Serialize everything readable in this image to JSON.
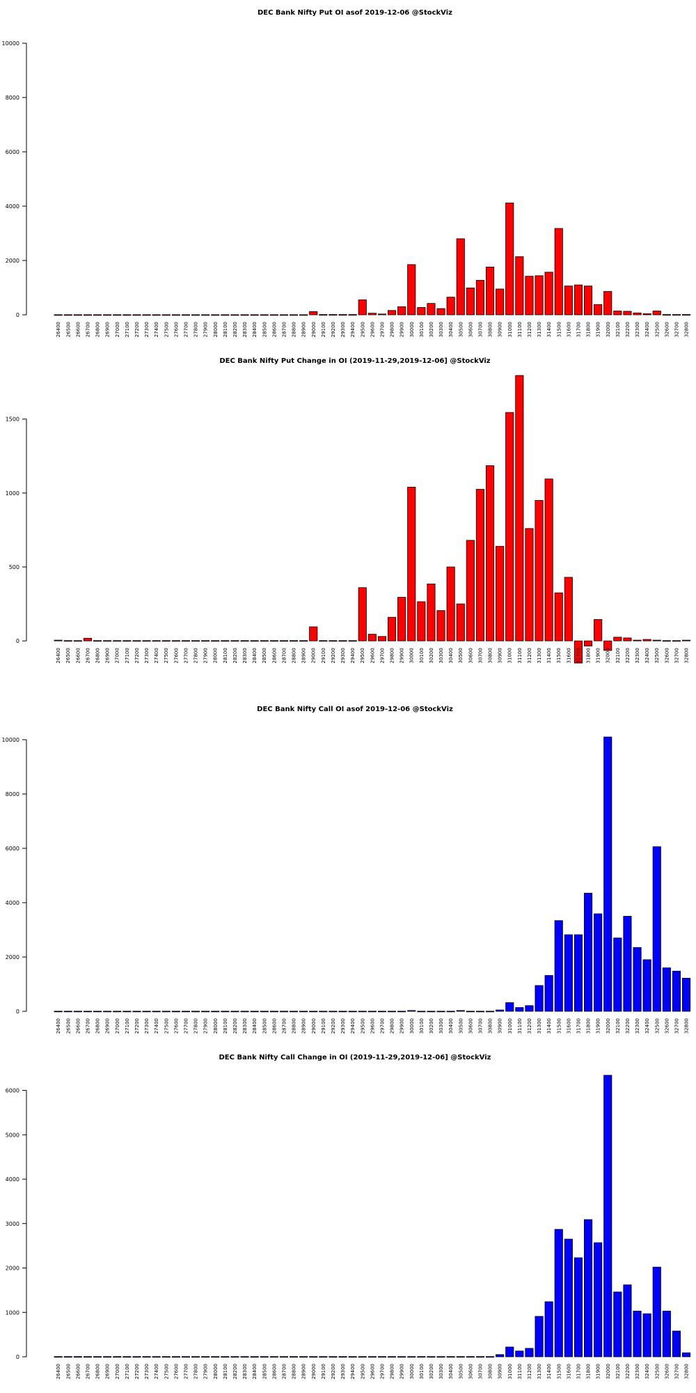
{
  "chart_data": [
    {
      "type": "bar",
      "title": "DEC Bank Nifty Put OI asof 2019-12-06 @StockViz",
      "color": "#ff0000",
      "ylim": [
        0,
        10000
      ],
      "yticks": [
        0,
        2000,
        4000,
        6000,
        8000,
        10000
      ],
      "categories": [
        "26400",
        "26500",
        "26600",
        "26700",
        "26800",
        "26900",
        "27000",
        "27100",
        "27200",
        "27300",
        "27400",
        "27500",
        "27600",
        "27700",
        "27800",
        "27900",
        "28000",
        "28100",
        "28200",
        "28300",
        "28400",
        "28500",
        "28600",
        "28700",
        "28800",
        "28900",
        "29000",
        "29100",
        "29200",
        "29300",
        "29400",
        "29500",
        "29600",
        "29700",
        "29800",
        "29900",
        "30000",
        "30100",
        "30200",
        "30300",
        "30400",
        "30500",
        "30600",
        "30700",
        "30800",
        "30900",
        "31000",
        "31100",
        "31200",
        "31300",
        "31400",
        "31500",
        "31600",
        "31700",
        "31800",
        "31900",
        "32000",
        "32100",
        "32200",
        "32300",
        "32400",
        "32500",
        "32600",
        "32700",
        "32800"
      ],
      "values": [
        5,
        5,
        5,
        5,
        5,
        5,
        5,
        5,
        5,
        5,
        5,
        5,
        5,
        5,
        5,
        5,
        5,
        5,
        5,
        5,
        5,
        5,
        5,
        5,
        5,
        5,
        120,
        10,
        10,
        10,
        10,
        550,
        60,
        30,
        160,
        300,
        1850,
        270,
        420,
        230,
        650,
        2800,
        990,
        1270,
        1760,
        950,
        4120,
        2140,
        1420,
        1440,
        1570,
        3180,
        1060,
        1100,
        1060,
        380,
        860,
        140,
        130,
        70,
        40,
        140,
        10,
        10,
        10
      ]
    },
    {
      "type": "bar",
      "title": "DEC Bank Nifty Put Change in OI (2019-11-29,2019-12-06] @StockViz",
      "color": "#ff0000",
      "ylim": [
        -150,
        1800
      ],
      "yticks": [
        0,
        500,
        1000,
        1500
      ],
      "categories": [
        "26400",
        "26500",
        "26600",
        "26700",
        "26800",
        "26900",
        "27000",
        "27100",
        "27200",
        "27300",
        "27400",
        "27500",
        "27600",
        "27700",
        "27800",
        "27900",
        "28000",
        "28100",
        "28200",
        "28300",
        "28400",
        "28500",
        "28600",
        "28700",
        "28800",
        "28900",
        "29000",
        "29100",
        "29200",
        "29300",
        "29400",
        "29500",
        "29600",
        "29700",
        "29800",
        "29900",
        "30000",
        "30100",
        "30200",
        "30300",
        "30400",
        "30500",
        "30600",
        "30700",
        "30800",
        "30900",
        "31000",
        "31100",
        "31200",
        "31300",
        "31400",
        "31500",
        "31600",
        "31700",
        "31800",
        "31900",
        "32000",
        "32100",
        "32200",
        "32300",
        "32400",
        "32500",
        "32600",
        "32700",
        "32800"
      ],
      "values": [
        5,
        2,
        2,
        18,
        2,
        2,
        2,
        2,
        2,
        2,
        2,
        2,
        2,
        2,
        2,
        2,
        2,
        2,
        2,
        2,
        2,
        2,
        2,
        2,
        2,
        2,
        95,
        2,
        2,
        2,
        2,
        360,
        45,
        30,
        160,
        295,
        1040,
        265,
        385,
        205,
        500,
        250,
        680,
        1025,
        1185,
        640,
        1545,
        1795,
        760,
        950,
        1095,
        325,
        430,
        -150,
        -35,
        145,
        -65,
        25,
        20,
        5,
        10,
        5,
        2,
        2,
        5
      ]
    },
    {
      "type": "bar",
      "title": "DEC Bank Nifty Call OI asof 2019-12-06 @StockViz",
      "color": "#0000ff",
      "ylim": [
        0,
        10000
      ],
      "yticks": [
        0,
        2000,
        4000,
        6000,
        8000,
        10000
      ],
      "categories": [
        "26400",
        "26500",
        "26600",
        "26700",
        "26800",
        "26900",
        "27000",
        "27100",
        "27200",
        "27300",
        "27400",
        "27500",
        "27600",
        "27700",
        "27800",
        "27900",
        "28000",
        "28100",
        "28200",
        "28300",
        "28400",
        "28500",
        "28600",
        "28700",
        "28800",
        "28900",
        "29000",
        "29100",
        "29200",
        "29300",
        "29400",
        "29500",
        "29600",
        "29700",
        "29800",
        "29900",
        "30000",
        "30100",
        "30200",
        "30300",
        "30400",
        "30500",
        "30600",
        "30700",
        "30800",
        "30900",
        "31000",
        "31100",
        "31200",
        "31300",
        "31400",
        "31500",
        "31600",
        "31700",
        "31800",
        "31900",
        "32000",
        "32100",
        "32200",
        "32300",
        "32400",
        "32500",
        "32600",
        "32700",
        "32800"
      ],
      "values": [
        5,
        5,
        5,
        5,
        5,
        5,
        5,
        5,
        5,
        5,
        5,
        5,
        5,
        5,
        5,
        5,
        5,
        5,
        5,
        5,
        5,
        5,
        5,
        5,
        5,
        5,
        5,
        5,
        5,
        5,
        5,
        5,
        5,
        5,
        5,
        5,
        30,
        5,
        5,
        5,
        5,
        30,
        5,
        5,
        5,
        50,
        320,
        140,
        210,
        950,
        1320,
        3340,
        2820,
        2820,
        4350,
        3590,
        10100,
        2700,
        3500,
        2350,
        1900,
        6060,
        1600,
        1480,
        1220
      ]
    },
    {
      "type": "bar",
      "title": "DEC Bank Nifty Call Change in OI (2019-11-29,2019-12-06] @StockViz",
      "color": "#0000ff",
      "ylim": [
        0,
        6400
      ],
      "yticks": [
        0,
        1000,
        2000,
        3000,
        4000,
        5000,
        6000
      ],
      "categories": [
        "26400",
        "26500",
        "26600",
        "26700",
        "26800",
        "26900",
        "27000",
        "27100",
        "27200",
        "27300",
        "27400",
        "27500",
        "27600",
        "27700",
        "27800",
        "27900",
        "28000",
        "28100",
        "28200",
        "28300",
        "28400",
        "28500",
        "28600",
        "28700",
        "28800",
        "28900",
        "29000",
        "29100",
        "29200",
        "29300",
        "29400",
        "29500",
        "29600",
        "29700",
        "29800",
        "29900",
        "30000",
        "30100",
        "30200",
        "30300",
        "30400",
        "30500",
        "30600",
        "30700",
        "30800",
        "30900",
        "31000",
        "31100",
        "31200",
        "31300",
        "31400",
        "31500",
        "31600",
        "31700",
        "31800",
        "31900",
        "32000",
        "32100",
        "32200",
        "32300",
        "32400",
        "32500",
        "32600",
        "32700",
        "32800"
      ],
      "values": [
        5,
        5,
        5,
        5,
        5,
        5,
        5,
        5,
        5,
        5,
        5,
        5,
        5,
        5,
        5,
        5,
        5,
        5,
        5,
        5,
        5,
        5,
        5,
        5,
        5,
        5,
        5,
        5,
        5,
        5,
        5,
        5,
        5,
        5,
        5,
        5,
        5,
        5,
        5,
        5,
        5,
        5,
        5,
        5,
        5,
        50,
        220,
        130,
        190,
        910,
        1240,
        2870,
        2650,
        2230,
        3090,
        2570,
        6340,
        1460,
        1620,
        1030,
        970,
        2020,
        1030,
        580,
        90
      ]
    }
  ]
}
